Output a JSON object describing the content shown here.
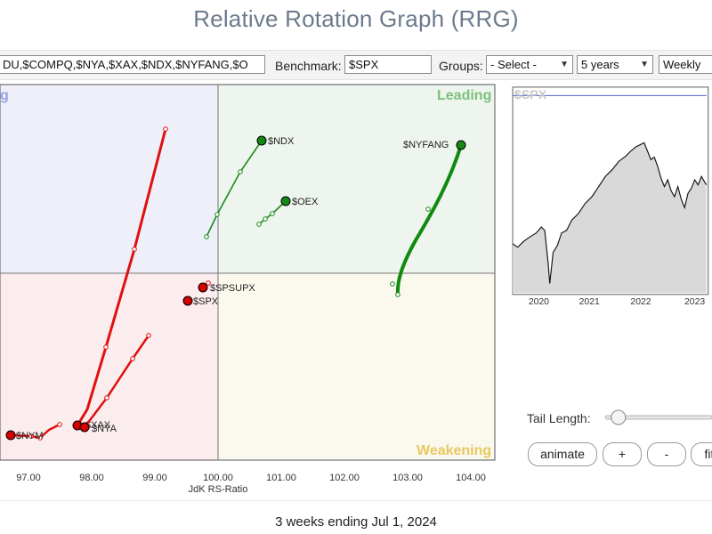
{
  "app": {
    "title": "Relative Rotation Graph (RRG)"
  },
  "controls": {
    "symbols_value": "DU,$COMPQ,$NYA,$XAX,$NDX,$NYFANG,$O",
    "benchmark_label": "Benchmark:",
    "benchmark_value": "$SPX",
    "groups_label": "Groups:",
    "groups_selected": "- Select -",
    "period_selected": "5 years",
    "frequency_selected": "Weekly"
  },
  "rrg": {
    "quadrants": {
      "leading": "Leading",
      "weakening": "Weakening",
      "improving_partial": "g"
    },
    "xaxis_label": "JdK RS-Ratio",
    "xticks": [
      "97.00",
      "98.00",
      "99.00",
      "100.00",
      "101.00",
      "102.00",
      "103.00",
      "104.00"
    ],
    "colors": {
      "leading": "#1a8a1a",
      "lagging": "#e01010",
      "point_lagging": "#d40000",
      "point_leading": "#138a13"
    },
    "labels": [
      "$NDX",
      "$OEX",
      "$NYFANG",
      "$SPSUPX",
      "$SPX",
      "$NYA",
      "$XAX",
      "$NYM"
    ]
  },
  "price_chart": {
    "symbol": "$SPX",
    "xticks": [
      "2020",
      "2021",
      "2022",
      "2023"
    ]
  },
  "tail": {
    "label": "Tail Length:",
    "value": 0.1
  },
  "buttons": {
    "animate": "animate",
    "plus": "+",
    "minus": "-",
    "fit": "fit"
  },
  "footer": {
    "status": "3 weeks ending Jul 1, 2024"
  }
}
